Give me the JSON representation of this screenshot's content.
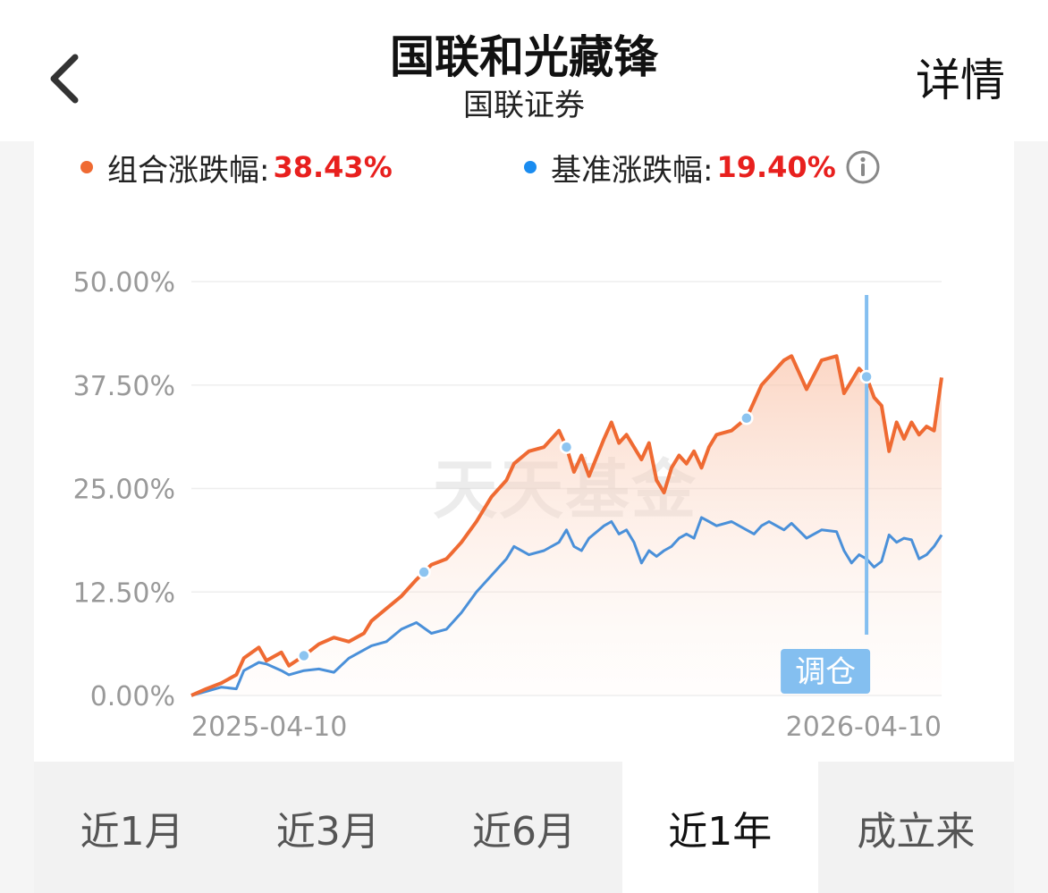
{
  "header": {
    "title": "国联和光藏锋",
    "subtitle": "国联证券",
    "detail_label": "详情"
  },
  "legend": {
    "portfolio_label": "组合涨跌幅:",
    "portfolio_value": "38.43%",
    "benchmark_label": "基准涨跌幅:",
    "benchmark_value": "19.40%"
  },
  "colors": {
    "portfolio": "#ef6a32",
    "benchmark": "#4a90d9",
    "value_red": "#e8201e",
    "marker": "#8cc4f0",
    "badge": "#84bff0"
  },
  "watermark": "天天基金",
  "chart_data": {
    "type": "line",
    "yticks": [
      "0.00%",
      "12.50%",
      "25.00%",
      "37.50%",
      "50.00%"
    ],
    "ylim": [
      0,
      50
    ],
    "x_start_label": "2025-04-10",
    "x_end_label": "2026-04-10",
    "grid": true,
    "x": [
      0,
      0.02,
      0.04,
      0.06,
      0.07,
      0.09,
      0.1,
      0.12,
      0.13,
      0.15,
      0.17,
      0.19,
      0.21,
      0.23,
      0.24,
      0.26,
      0.28,
      0.3,
      0.32,
      0.34,
      0.36,
      0.38,
      0.4,
      0.42,
      0.43,
      0.45,
      0.47,
      0.49,
      0.5,
      0.51,
      0.52,
      0.53,
      0.55,
      0.56,
      0.57,
      0.58,
      0.59,
      0.6,
      0.61,
      0.62,
      0.63,
      0.64,
      0.65,
      0.66,
      0.67,
      0.68,
      0.69,
      0.7,
      0.72,
      0.74,
      0.75,
      0.76,
      0.77,
      0.78,
      0.79,
      0.8,
      0.82,
      0.84,
      0.86,
      0.87,
      0.88,
      0.89,
      0.9,
      0.91,
      0.92,
      0.93,
      0.94,
      0.95,
      0.96,
      0.97,
      0.98,
      0.99,
      1.0
    ],
    "series": [
      {
        "name": "组合涨跌幅",
        "values": [
          0.0,
          0.8,
          1.5,
          2.5,
          4.5,
          5.8,
          4.2,
          5.2,
          3.6,
          4.8,
          6.2,
          7.0,
          6.5,
          7.5,
          9.0,
          10.5,
          12.0,
          14.0,
          15.8,
          16.5,
          18.5,
          21.0,
          24.0,
          26.0,
          28.0,
          29.5,
          30.0,
          32.0,
          30.0,
          27.0,
          29.0,
          26.5,
          31.0,
          33.0,
          30.5,
          31.5,
          30.0,
          28.5,
          30.5,
          26.0,
          24.5,
          27.5,
          29.0,
          28.0,
          29.5,
          27.5,
          30.0,
          31.5,
          32.0,
          33.5,
          35.5,
          37.5,
          38.5,
          39.5,
          40.5,
          41.0,
          37.0,
          40.5,
          41.0,
          36.5,
          38.0,
          39.5,
          38.5,
          36.0,
          35.0,
          29.5,
          33.0,
          31.0,
          33.0,
          31.5,
          32.5,
          32.0,
          38.4
        ]
      },
      {
        "name": "基准涨跌幅",
        "values": [
          0.0,
          0.5,
          1.0,
          0.8,
          3.0,
          4.0,
          3.8,
          3.0,
          2.5,
          3.0,
          3.2,
          2.8,
          4.5,
          5.5,
          6.0,
          6.5,
          8.0,
          8.8,
          7.5,
          8.0,
          10.0,
          12.5,
          14.5,
          16.5,
          18.0,
          17.0,
          17.5,
          18.5,
          20.0,
          18.0,
          17.5,
          19.0,
          20.5,
          21.0,
          19.5,
          20.0,
          18.5,
          16.0,
          17.5,
          16.8,
          17.5,
          18.0,
          19.0,
          19.5,
          19.0,
          21.5,
          21.0,
          20.5,
          21.0,
          20.0,
          19.5,
          20.5,
          21.0,
          20.5,
          20.0,
          20.8,
          19.0,
          20.0,
          19.8,
          17.5,
          16.0,
          17.0,
          16.5,
          15.5,
          16.2,
          19.4,
          18.5,
          19.0,
          18.8,
          16.5,
          17.0,
          18.0,
          19.4
        ]
      }
    ],
    "rebalance_points": [
      0.15,
      0.31,
      0.5,
      0.74,
      0.9
    ],
    "rebalance_label": "调仓",
    "rebalance_highlight_x": 0.9
  },
  "tabs": [
    {
      "label": "近1月",
      "active": false
    },
    {
      "label": "近3月",
      "active": false
    },
    {
      "label": "近6月",
      "active": false
    },
    {
      "label": "近1年",
      "active": true
    },
    {
      "label": "成立来",
      "active": false
    }
  ]
}
